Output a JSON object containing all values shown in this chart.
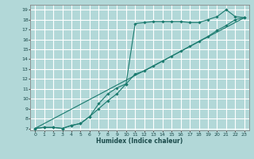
{
  "xlabel": "Humidex (Indice chaleur)",
  "bg_color": "#b2d8d8",
  "grid_color": "#ffffff",
  "line_color": "#1a7a6e",
  "xlim": [
    -0.5,
    23.5
  ],
  "ylim": [
    6.8,
    19.5
  ],
  "xticks": [
    0,
    1,
    2,
    3,
    4,
    5,
    6,
    7,
    8,
    9,
    10,
    11,
    12,
    13,
    14,
    15,
    16,
    17,
    18,
    19,
    20,
    21,
    22,
    23
  ],
  "yticks": [
    7,
    8,
    9,
    10,
    11,
    12,
    13,
    14,
    15,
    16,
    17,
    18,
    19
  ],
  "series1_x": [
    0,
    1,
    2,
    3,
    4,
    5,
    6,
    7,
    8,
    9,
    10,
    11,
    12,
    13,
    14,
    15,
    16,
    17,
    18,
    19,
    20,
    21,
    22,
    23
  ],
  "series1_y": [
    7.0,
    7.1,
    7.1,
    7.0,
    7.3,
    7.5,
    8.2,
    9.5,
    10.5,
    11.1,
    11.5,
    17.6,
    17.7,
    17.8,
    17.8,
    17.8,
    17.8,
    17.7,
    17.7,
    18.0,
    18.3,
    19.0,
    18.3,
    18.2
  ],
  "series2_x": [
    0,
    1,
    2,
    3,
    4,
    5,
    6,
    7,
    8,
    9,
    10,
    11,
    12,
    13,
    14,
    15,
    16,
    17,
    18,
    19,
    20,
    21,
    22,
    23
  ],
  "series2_y": [
    7.0,
    7.1,
    7.1,
    7.0,
    7.3,
    7.5,
    8.2,
    9.0,
    9.8,
    10.5,
    11.5,
    12.5,
    12.8,
    13.3,
    13.8,
    14.3,
    14.8,
    15.3,
    15.8,
    16.3,
    16.9,
    17.4,
    18.0,
    18.2
  ],
  "series3_x": [
    0,
    23
  ],
  "series3_y": [
    7.0,
    18.2
  ]
}
